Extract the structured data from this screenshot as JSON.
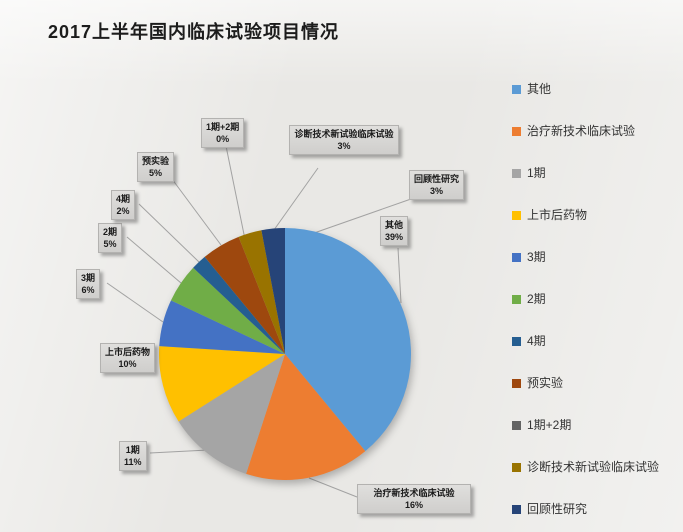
{
  "title": "2017上半年国内临床试验项目情况",
  "chart_data": {
    "type": "pie",
    "title": "2017上半年国内临床试验项目情况",
    "unit": "%",
    "start_angle_deg": 0,
    "direction": "clockwise",
    "legend_position": "right",
    "slices": [
      {
        "label": "其他",
        "value": 39,
        "pct_label": "39%",
        "color": "#5B9BD5"
      },
      {
        "label": "治疗新技术临床试验",
        "value": 16,
        "pct_label": "16%",
        "color": "#ED7D31"
      },
      {
        "label": "1期",
        "value": 11,
        "pct_label": "11%",
        "color": "#A5A5A5"
      },
      {
        "label": "上市后药物",
        "value": 10,
        "pct_label": "10%",
        "color": "#FFC000"
      },
      {
        "label": "3期",
        "value": 6,
        "pct_label": "6%",
        "color": "#4472C4"
      },
      {
        "label": "2期",
        "value": 5,
        "pct_label": "5%",
        "color": "#70AD47"
      },
      {
        "label": "4期",
        "value": 2,
        "pct_label": "2%",
        "color": "#255E91"
      },
      {
        "label": "预实验",
        "value": 5,
        "pct_label": "5%",
        "color": "#9E480E"
      },
      {
        "label": "1期+2期",
        "value": 0,
        "pct_label": "0%",
        "color": "#636363"
      },
      {
        "label": "诊断技术新试验临床试验",
        "value": 3,
        "pct_label": "3%",
        "color": "#997300"
      },
      {
        "label": "回顾性研究",
        "value": 3,
        "pct_label": "3%",
        "color": "#264478"
      }
    ]
  }
}
